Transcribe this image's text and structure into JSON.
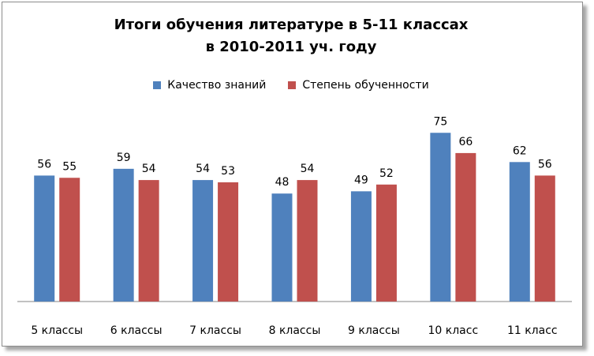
{
  "chart_data": {
    "type": "bar",
    "title_line1": "Итоги обучения литературе в 5-11 классах",
    "title_line2": "в 2010-2011 уч. году",
    "categories": [
      "5 классы",
      "6 классы",
      "7 классы",
      "8 классы",
      "9 классы",
      "10 класс",
      "11 класс"
    ],
    "series": [
      {
        "name": "Качество знаний",
        "color": "#4F81BD",
        "values": [
          56,
          59,
          54,
          48,
          49,
          75,
          62
        ]
      },
      {
        "name": "Степень обученности",
        "color": "#C0504D",
        "values": [
          55,
          54,
          53,
          54,
          52,
          66,
          56
        ]
      }
    ],
    "ylim": [
      0,
      100
    ],
    "grid": false,
    "data_labels": true,
    "legend_position": "top"
  }
}
